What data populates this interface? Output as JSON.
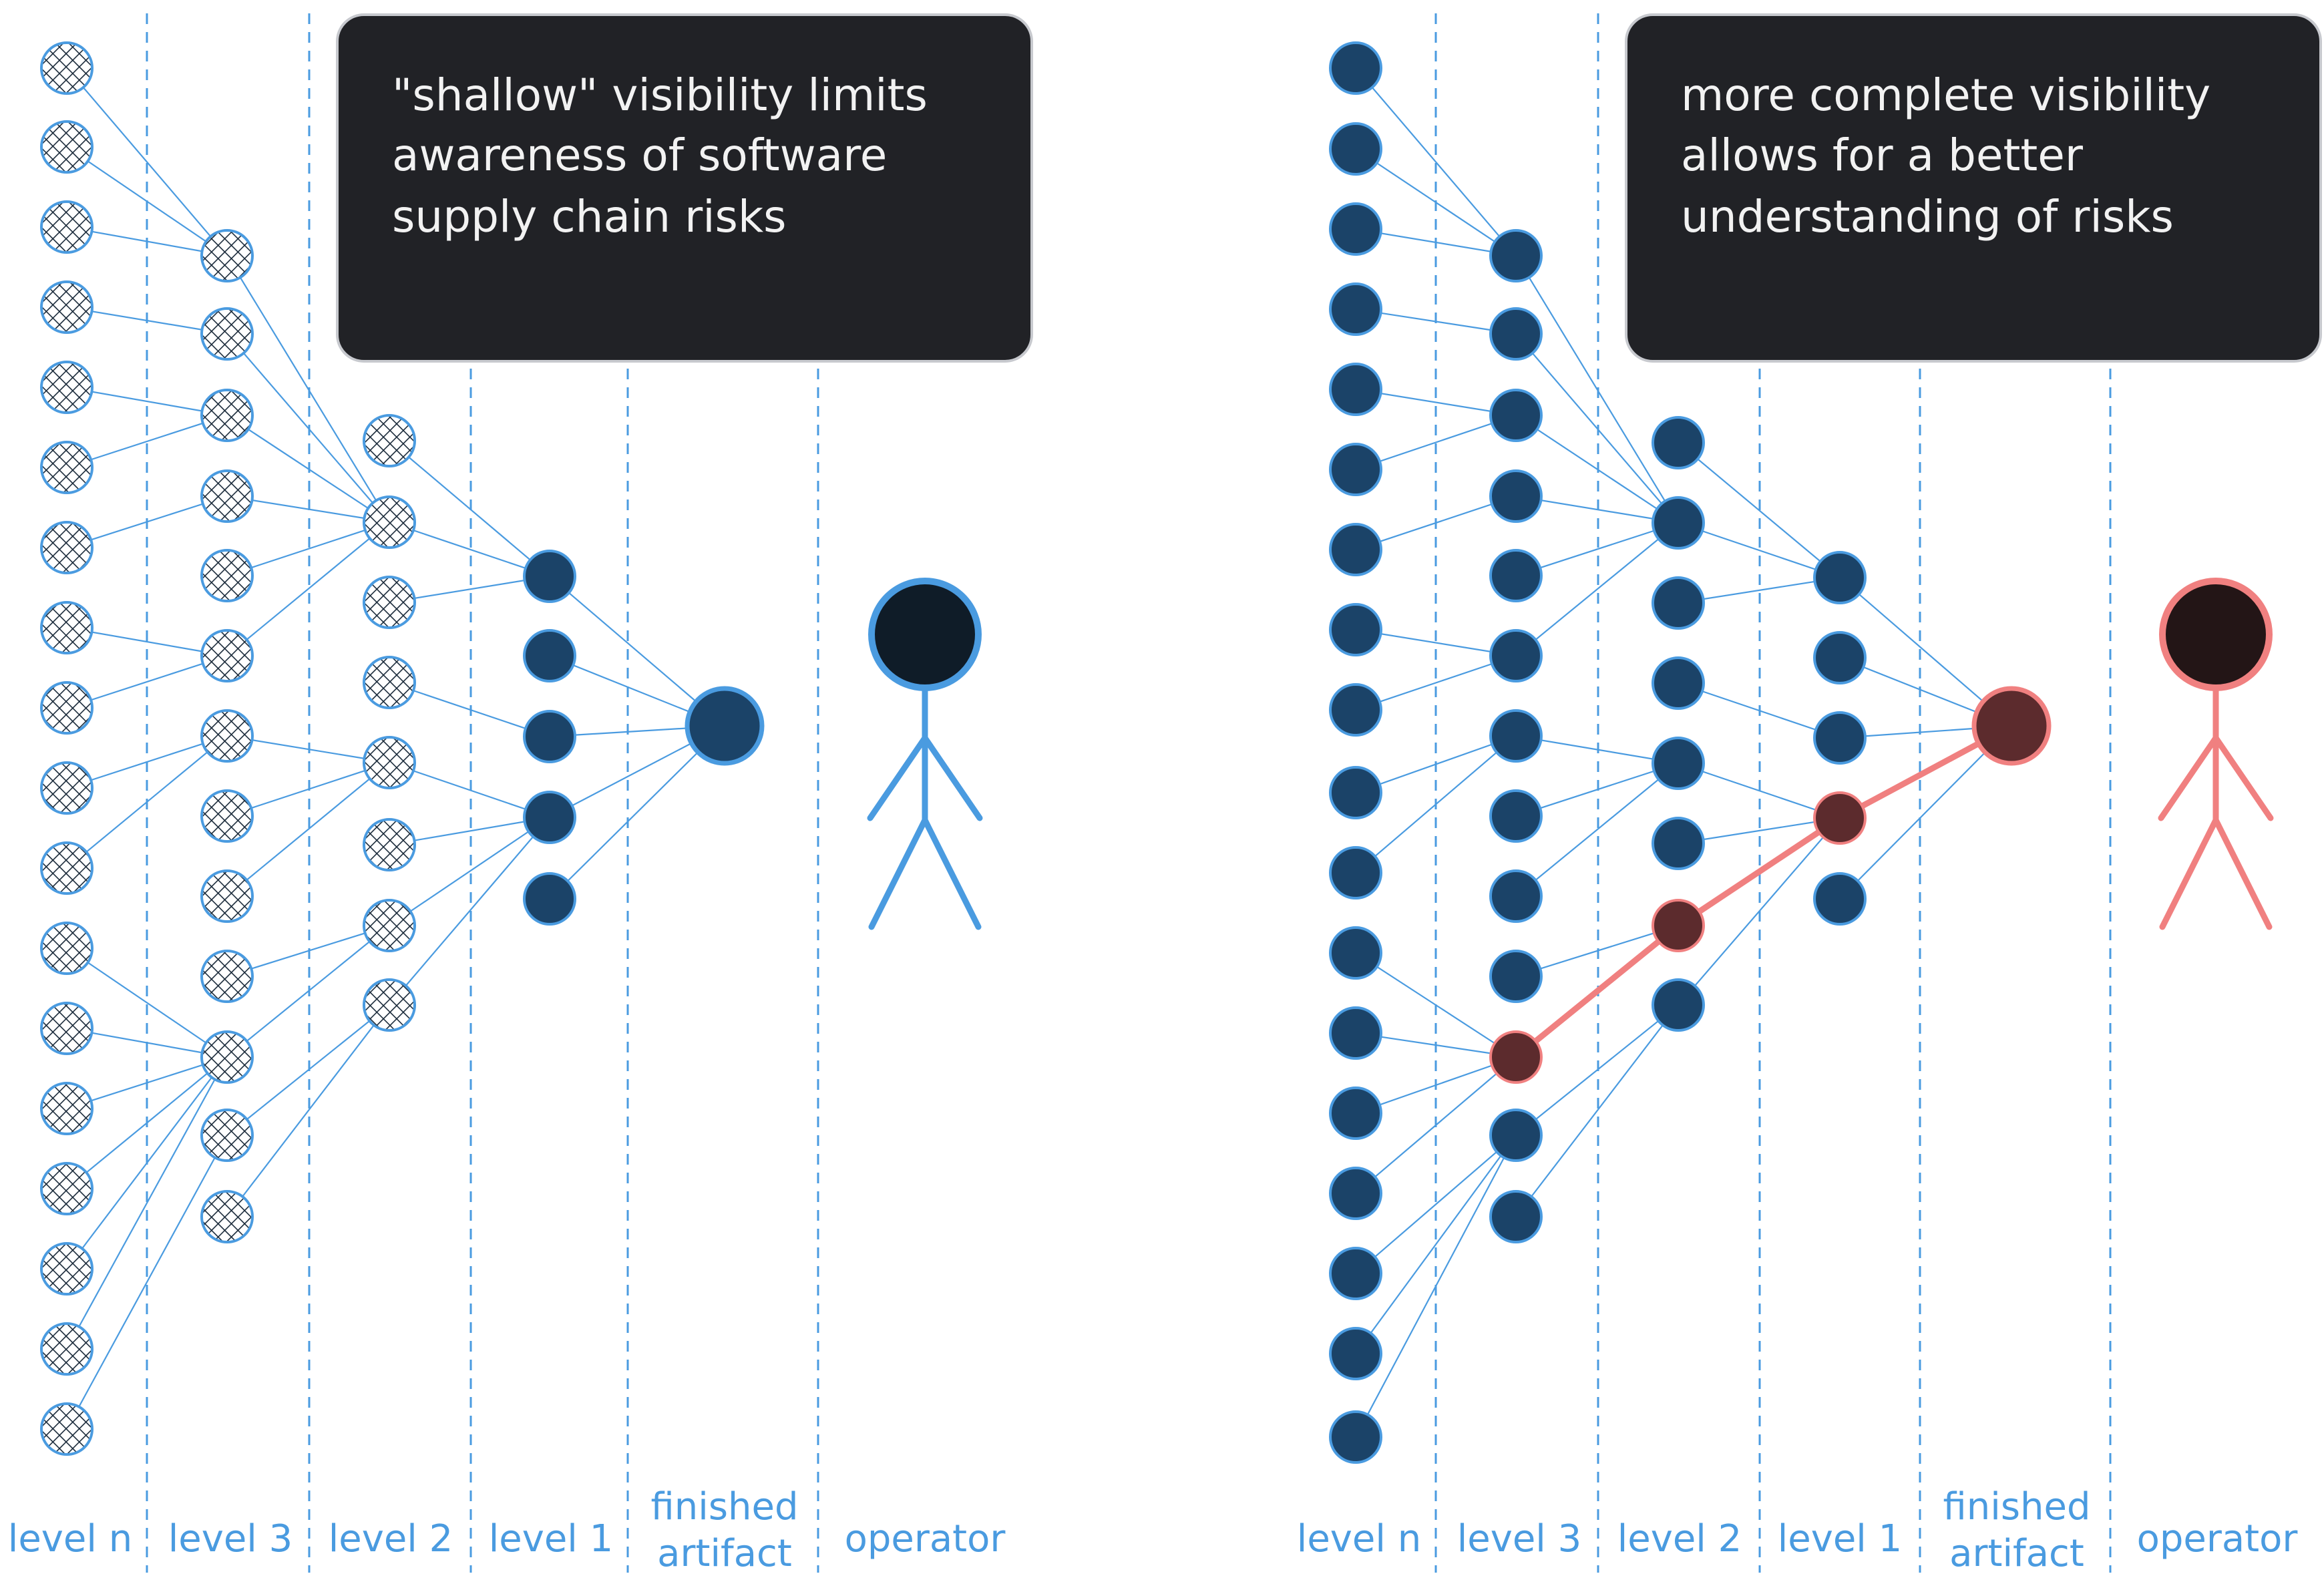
{
  "panels": [
    {
      "caption": [
        "\"shallow\" visibility limits",
        "awareness of software",
        "supply chain risks"
      ],
      "labels": {
        "level_n": "level n",
        "level_3": "level 3",
        "level_2": "level 2",
        "level_1": "level 1",
        "artifact": [
          "finished",
          "artifact"
        ],
        "operator": "operator"
      }
    },
    {
      "caption": [
        "more complete visibility",
        "allows for a better",
        "understanding of risks"
      ],
      "labels": {
        "level_n": "level n",
        "level_3": "level 3",
        "level_2": "level 2",
        "level_1": "level 1",
        "artifact": [
          "finished",
          "artifact"
        ],
        "operator": "operator"
      }
    }
  ],
  "colors": {
    "divider": "#4a9be0",
    "edge": "#4a9be0",
    "node_fill": "#1b4368",
    "node_stroke": "#4a9be0",
    "hatched_fill": "#ffffff",
    "hatched_pattern": "#1a2a3a",
    "risk_edge": "#f08080",
    "risk_node_fill": "#5c2b2d",
    "risk_node_stroke": "#f08080",
    "operator_safe_head": "#0f1c28",
    "operator_risk_head": "#231516",
    "caption_bg": "#212226",
    "caption_text": "#f2f2f2"
  }
}
